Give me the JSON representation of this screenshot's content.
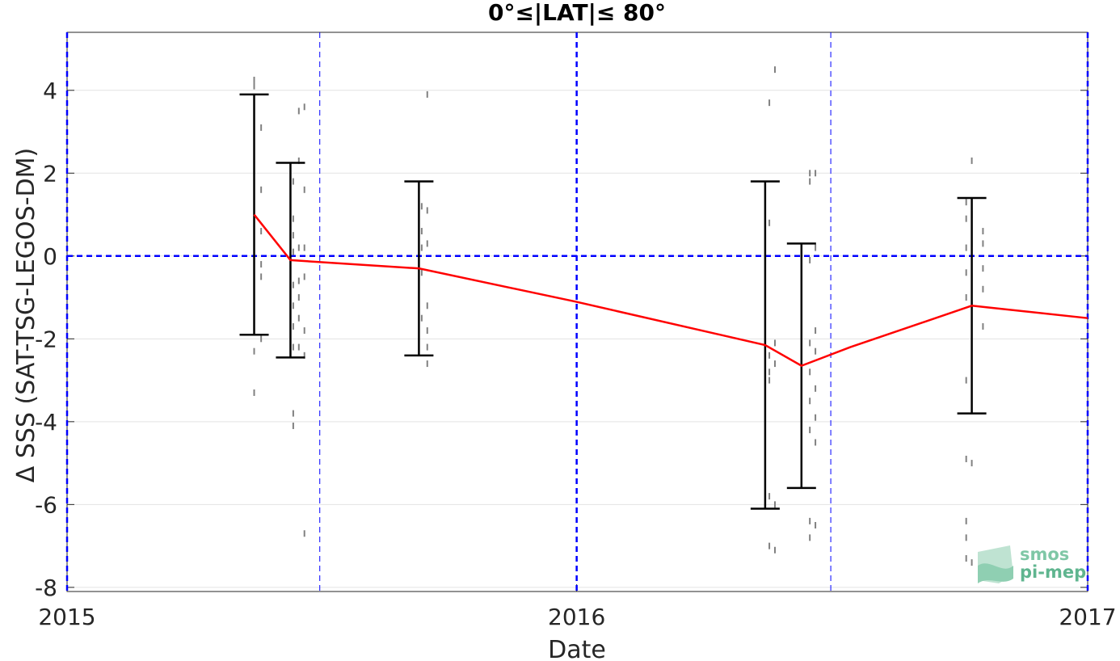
{
  "chart_data": {
    "type": "line",
    "title": "0°≤|LAT|≤ 80°",
    "xlabel": "Date",
    "ylabel": "Δ SSS (SAT-TSG-LEGOS-DM)",
    "xlim": [
      "2015-01-01",
      "2017-01-01"
    ],
    "ylim": [
      -8.1,
      5.4
    ],
    "x_ticks": [
      "2015",
      "2016",
      "2017"
    ],
    "y_ticks": [
      4,
      2,
      0,
      -2,
      -4,
      -6,
      -8
    ],
    "y_tick_labels": [
      "4",
      "2",
      "0",
      "-2",
      "-4",
      "-6",
      "-8"
    ],
    "grid": true,
    "colors": {
      "mean_line": "#ff0000",
      "error_bars": "#000000",
      "reference_lines": "#0000ff",
      "samples": "#808080"
    },
    "series": [
      {
        "kind": "mean_line",
        "x": [
          "2015-05-15",
          "2015-06-10",
          "2015-09-10",
          "2015-12-31",
          "2016-05-15",
          "2016-06-10",
          "2016-07-15",
          "2016-10-10",
          "2017-01-01"
        ],
        "values": [
          1.0,
          -0.1,
          -0.3,
          -1.1,
          -2.15,
          -2.65,
          -2.2,
          -1.2,
          -1.5
        ]
      },
      {
        "kind": "error_bars",
        "x": [
          "2015-05-15",
          "2015-06-10",
          "2015-09-10",
          "2016-05-15",
          "2016-06-10",
          "2016-10-10"
        ],
        "lower": [
          -1.9,
          -2.45,
          -2.4,
          -6.1,
          -5.6,
          -3.8
        ],
        "upper": [
          3.9,
          2.25,
          1.8,
          1.8,
          0.3,
          1.4
        ]
      }
    ],
    "samples": [
      {
        "x": "2015-05-15",
        "values": [
          4.25,
          4.1,
          3.5,
          2.6,
          1.5,
          0.9,
          0.2,
          -0.5,
          -1.5,
          -2.3,
          -3.3
        ]
      },
      {
        "x": "2015-05-20",
        "values": [
          3.1,
          1.6,
          0.6,
          -0.2,
          -0.5,
          -2.0
        ]
      },
      {
        "x": "2015-06-12",
        "values": [
          1.8,
          0.9,
          0.5,
          0.1,
          -0.7,
          -1.2,
          -1.7,
          -2.2,
          -3.8,
          -4.1
        ]
      },
      {
        "x": "2015-06-16",
        "values": [
          3.5,
          2.3,
          0.2,
          -0.6,
          -1.0,
          -1.5,
          -2.2
        ]
      },
      {
        "x": "2015-06-20",
        "values": [
          3.6,
          1.6,
          0.2,
          -0.5,
          -1.8,
          -2.4,
          -6.7
        ]
      },
      {
        "x": "2015-09-12",
        "values": [
          1.2,
          0.6,
          0.2,
          -0.4,
          -1.5
        ]
      },
      {
        "x": "2015-09-16",
        "values": [
          3.9,
          1.1,
          0.3,
          -1.2,
          -1.8,
          -2.2,
          -2.6
        ]
      },
      {
        "x": "2016-05-18",
        "values": [
          3.7,
          0.8,
          -2.4,
          -2.8,
          -3.0,
          -5.8,
          -7.0
        ]
      },
      {
        "x": "2016-05-22",
        "values": [
          4.5,
          -2.1,
          -2.6,
          -6.0,
          -7.1
        ]
      },
      {
        "x": "2016-06-16",
        "values": [
          2.0,
          1.8,
          -0.1,
          -2.1,
          -2.8,
          -3.5,
          -4.2,
          -6.4,
          -6.8
        ]
      },
      {
        "x": "2016-06-20",
        "values": [
          2.0,
          0.2,
          -1.8,
          -2.3,
          -3.2,
          -3.9,
          -4.5,
          -6.5
        ]
      },
      {
        "x": "2016-10-06",
        "values": [
          1.3,
          0.9,
          0.2,
          -0.4,
          -1.0,
          -3.0,
          -4.9,
          -6.4,
          -6.8,
          -7.3
        ]
      },
      {
        "x": "2016-10-10",
        "values": [
          2.3,
          1.0,
          0.3,
          -0.5,
          -1.2,
          -5.0,
          -7.4
        ]
      },
      {
        "x": "2016-10-18",
        "values": [
          0.6,
          0.3,
          -0.3,
          -0.8,
          -1.7
        ]
      }
    ],
    "reference_lines": {
      "horizontal": [
        0
      ],
      "vertical_bold": [
        "2015-01-01",
        "2016-01-01",
        "2017-01-01"
      ],
      "vertical_thin": [
        "2015-07-01",
        "2016-07-01"
      ]
    }
  },
  "logo": {
    "line1": "smos",
    "line2": "pi-mep"
  }
}
